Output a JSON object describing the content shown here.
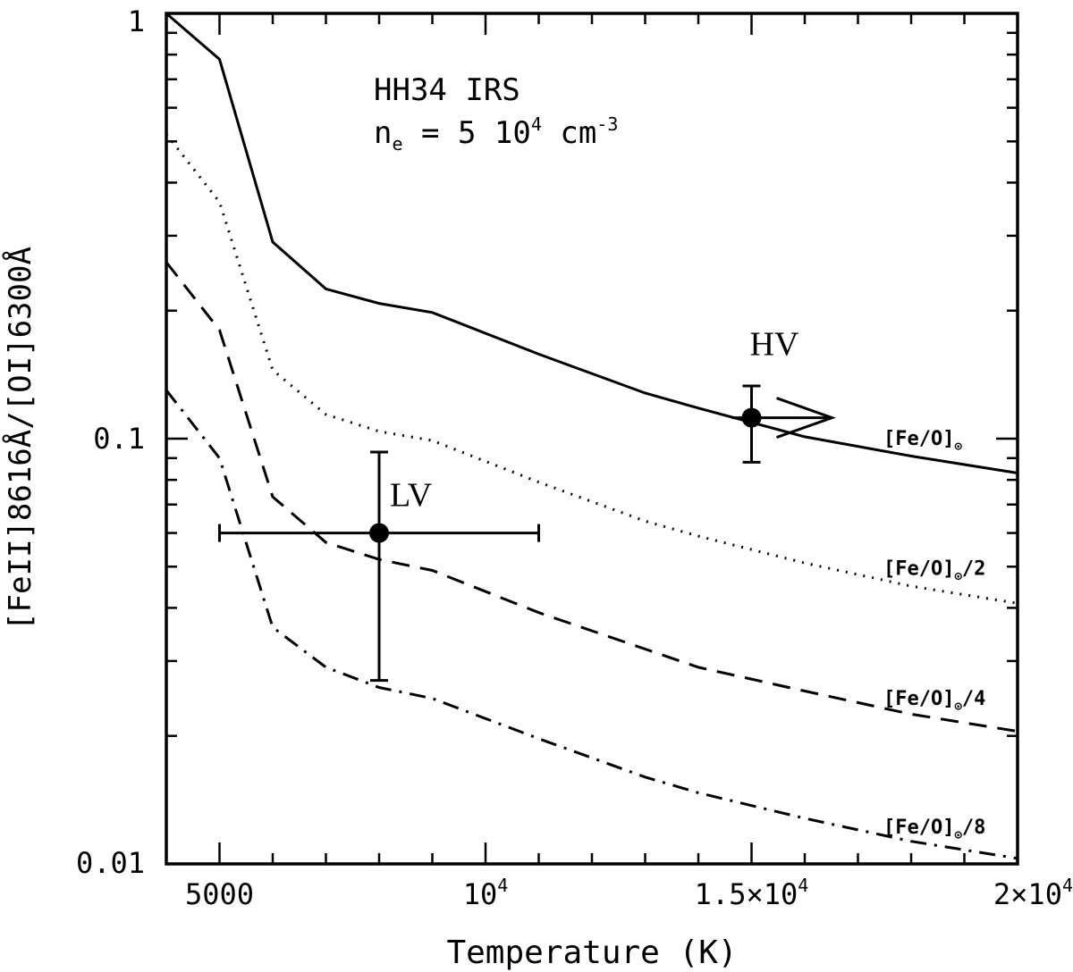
{
  "chart_data": {
    "type": "line",
    "xlabel": "Temperature (K)",
    "ylabel": "[FeII]8616Å/[OI]6300Å",
    "xlim": [
      4000,
      20000
    ],
    "ylim": [
      0.01,
      1
    ],
    "y_scale": "log",
    "x_ticks": [
      {
        "value": 5000,
        "label": "5000",
        "sup": ""
      },
      {
        "value": 10000,
        "label": "10",
        "sup": "4"
      },
      {
        "value": 15000,
        "label": "1.5×10",
        "sup": "4"
      },
      {
        "value": 20000,
        "label": "2×10",
        "sup": "4"
      }
    ],
    "y_ticks": [
      {
        "value": 1,
        "label": "1"
      },
      {
        "value": 0.1,
        "label": "0.1"
      },
      {
        "value": 0.01,
        "label": "0.01"
      }
    ],
    "annotation": {
      "line1": "HH34  IRS",
      "line2_base": "n",
      "line2_sub": "e",
      "line2_mid": " =  5 10",
      "line2_sup1": "4",
      "line2_unit": " cm",
      "line2_sup2": "-3"
    },
    "series": [
      {
        "name": "[Fe/O]⊙",
        "label_base": "[Fe/O]",
        "label_suffix": "",
        "style": "solid",
        "x": [
          4000,
          5000,
          6000,
          7000,
          8000,
          9000,
          11000,
          13000,
          14000,
          16000,
          18000,
          20000
        ],
        "y": [
          1.0,
          0.78,
          0.29,
          0.225,
          0.208,
          0.198,
          0.158,
          0.128,
          0.118,
          0.101,
          0.091,
          0.083
        ]
      },
      {
        "name": "[Fe/O]⊙/2",
        "label_base": "[Fe/O]",
        "label_suffix": "/2",
        "style": "dotted",
        "x": [
          4000,
          5000,
          6000,
          7000,
          8000,
          9000,
          11000,
          13000,
          14000,
          16000,
          18000,
          20000
        ],
        "y": [
          0.52,
          0.36,
          0.145,
          0.114,
          0.104,
          0.099,
          0.079,
          0.064,
          0.059,
          0.051,
          0.045,
          0.041
        ]
      },
      {
        "name": "[Fe/O]⊙/4",
        "label_base": "[Fe/O]",
        "label_suffix": "/4",
        "style": "dashed",
        "x": [
          4000,
          5000,
          6000,
          7000,
          8000,
          9000,
          11000,
          13000,
          14000,
          16000,
          18000,
          20000
        ],
        "y": [
          0.26,
          0.18,
          0.073,
          0.057,
          0.052,
          0.049,
          0.039,
          0.032,
          0.029,
          0.0255,
          0.0225,
          0.0205
        ]
      },
      {
        "name": "[Fe/O]⊙/8",
        "label_base": "[Fe/O]",
        "label_suffix": "/8",
        "style": "dashdot",
        "x": [
          4000,
          5000,
          6000,
          7000,
          8000,
          9000,
          11000,
          13000,
          14000,
          16000,
          18000,
          20000
        ],
        "y": [
          0.13,
          0.09,
          0.036,
          0.029,
          0.026,
          0.0245,
          0.0197,
          0.016,
          0.0147,
          0.0128,
          0.0113,
          0.0103
        ]
      }
    ],
    "points": [
      {
        "name": "LV",
        "x": 8000,
        "y": 0.06,
        "xerr": [
          5000,
          11000
        ],
        "yerr": [
          0.027,
          0.093
        ],
        "lower_limit_x": false
      },
      {
        "name": "HV",
        "x": 15000,
        "y": 0.112,
        "xerr": null,
        "yerr": [
          0.088,
          0.133
        ],
        "lower_limit_x": true
      }
    ]
  }
}
